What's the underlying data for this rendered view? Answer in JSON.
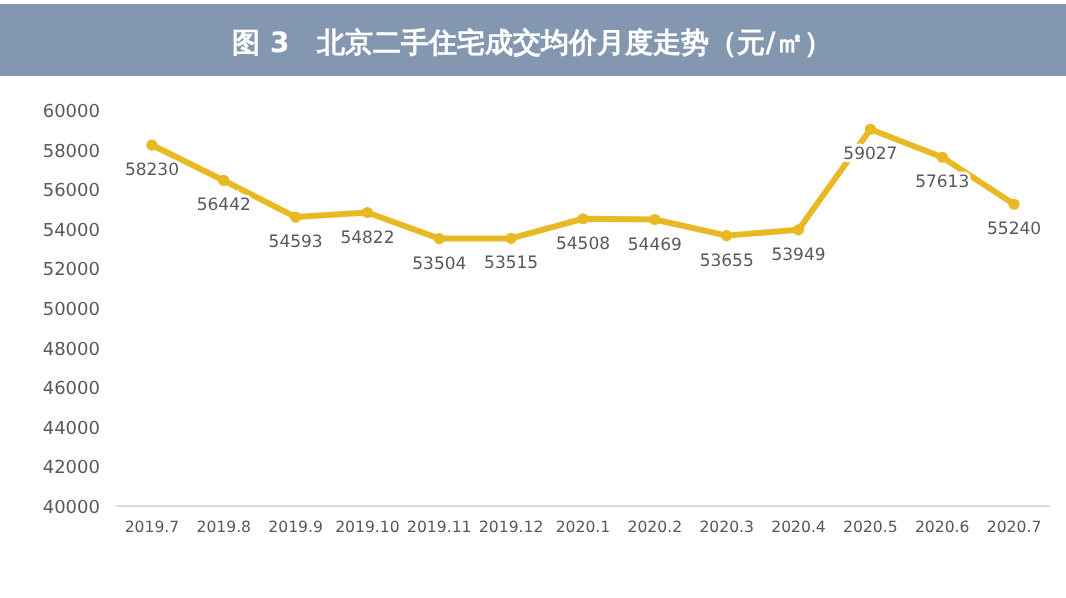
{
  "chart_data": {
    "type": "line",
    "title": "图 3　北京二手住宅成交均价月度走势（元/㎡）",
    "categories": [
      "2019.7",
      "2019.8",
      "2019.9",
      "2019.10",
      "2019.11",
      "2019.12",
      "2020.1",
      "2020.2",
      "2020.3",
      "2020.4",
      "2020.5",
      "2020.6",
      "2020.7"
    ],
    "series": [
      {
        "color": "#e8b923",
        "values": [
          58230,
          56442,
          54593,
          54822,
          53504,
          53515,
          54508,
          54469,
          53655,
          53949,
          59027,
          57613,
          55240
        ]
      }
    ],
    "ylim": [
      40000,
      60000
    ],
    "yticks": [
      40000,
      42000,
      44000,
      46000,
      48000,
      50000,
      52000,
      54000,
      56000,
      58000,
      60000
    ],
    "grid": false,
    "marker": "circle",
    "data_labels": true
  }
}
